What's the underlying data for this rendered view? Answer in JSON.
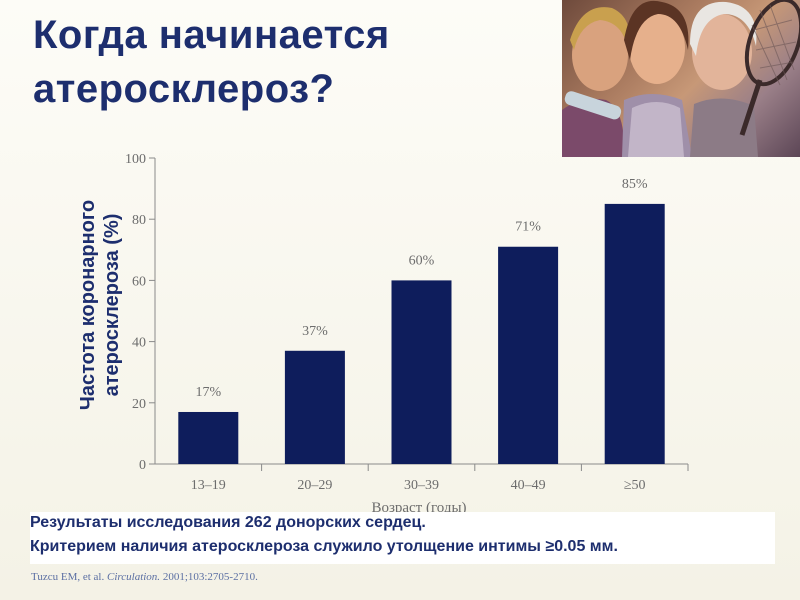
{
  "slide": {
    "title_line1": "Когда начинается",
    "title_line2": "атеросклероз?"
  },
  "photo": {
    "description_icon": "women-photo"
  },
  "chart_data": {
    "type": "bar",
    "categories": [
      "13–19",
      "20–29",
      "30–39",
      "40–49",
      "≥50"
    ],
    "values": [
      17,
      37,
      60,
      71,
      85
    ],
    "data_labels": [
      "17%",
      "37%",
      "60%",
      "71%",
      "85%"
    ],
    "ylabel_line1": "Частота коронарного",
    "ylabel_line2": "атеросклероза (%)",
    "xlabel": "Возраст (годы)",
    "ylim": [
      0,
      100
    ],
    "yticks": [
      0,
      20,
      40,
      60,
      80,
      100
    ],
    "grid": false,
    "bar_color": "#0e1d5c",
    "axis_color": "#8a8a8a"
  },
  "results": {
    "line1": "Результаты исследования 262 донорских сердец.",
    "line2": "Критерием наличия атеросклероза служило утолщение интимы ≥0.05 мм."
  },
  "citation": {
    "authors": "Tuzcu EM, et al.",
    "journal": "Circulation.",
    "details": "2001;103:2705-2710."
  },
  "colors": {
    "title": "#1d2e6e",
    "accent": "#0e1d5c"
  }
}
